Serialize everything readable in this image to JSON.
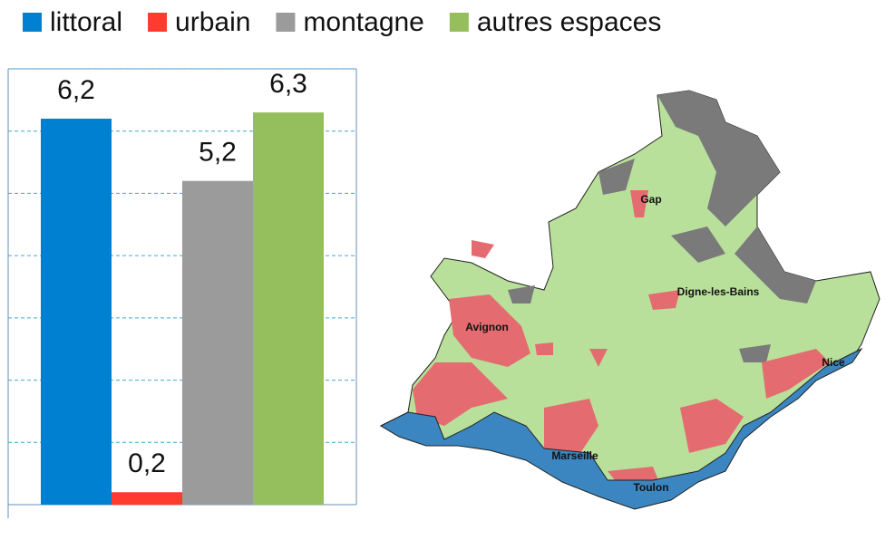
{
  "chart_data": {
    "type": "bar",
    "categories": [
      null
    ],
    "series": [
      {
        "name": "littoral",
        "color": "#0080d0",
        "values": [
          6.2
        ],
        "value_labels": [
          "6,2"
        ]
      },
      {
        "name": "urbain",
        "color": "#ff3b2f",
        "values": [
          0.2
        ],
        "value_labels": [
          "0,2"
        ]
      },
      {
        "name": "montagne",
        "color": "#9b9b9b",
        "values": [
          5.2
        ],
        "value_labels": [
          "5,2"
        ]
      },
      {
        "name": "autres espaces",
        "color": "#95bf5c",
        "values": [
          6.3
        ],
        "value_labels": [
          "6,3"
        ]
      }
    ],
    "ylim": [
      0,
      7
    ],
    "yticks": [
      0,
      1,
      2,
      3,
      4,
      5,
      6,
      7
    ],
    "grid": true,
    "legend": "top"
  },
  "map": {
    "labels": [
      "Gap",
      "Digne-les-Bains",
      "Avignon",
      "Nice",
      "Marseille",
      "Toulon"
    ]
  }
}
